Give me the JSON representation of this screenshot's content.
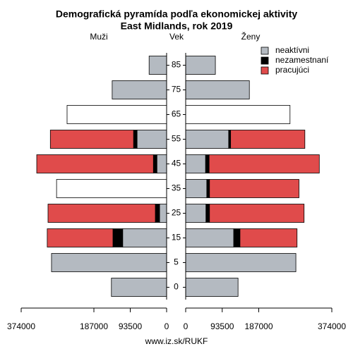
{
  "chart_data": {
    "type": "pyramid",
    "title": "Demografická pyramída podľa ekonomickej aktivity",
    "subtitle": "East Midlands, rok 2019",
    "left_label": "Muži",
    "center_label": "Vek",
    "right_label": "Ženy",
    "source": "www.iz.sk/RUKF",
    "categories": [
      "85",
      "75",
      "65",
      "55",
      "45",
      "35",
      "25",
      "15",
      "5",
      "0"
    ],
    "xlim": [
      0,
      374000
    ],
    "xticks": [
      0,
      93500,
      187000,
      374000
    ],
    "series": [
      {
        "name": "neaktívni",
        "color": "#b4bac1",
        "values_male": [
          45000,
          140000,
          null,
          76000,
          25000,
          null,
          18000,
          113000,
          296000,
          142000
        ],
        "values_female": [
          76000,
          163000,
          null,
          110000,
          51000,
          54000,
          52000,
          123000,
          282000,
          134000
        ]
      },
      {
        "name": "nezamestnaní",
        "color": "#000000",
        "values_male": [
          null,
          null,
          null,
          9000,
          9000,
          null,
          11000,
          25000,
          null,
          null
        ],
        "values_female": [
          null,
          null,
          null,
          5000,
          9000,
          7000,
          9000,
          16000,
          null,
          null
        ]
      },
      {
        "name": "pracujúci",
        "color": "#e04b4b",
        "values_male": [
          null,
          null,
          null,
          214000,
          300000,
          null,
          276000,
          169000,
          null,
          null
        ],
        "values_female": [
          null,
          null,
          null,
          190000,
          282000,
          229000,
          242000,
          146000,
          null,
          null
        ]
      },
      {
        "color": "#ffffff",
        "values_male": [
          null,
          null,
          256000,
          null,
          null,
          283000,
          null,
          null,
          null,
          null
        ],
        "values_female": [
          null,
          null,
          267000,
          null,
          null,
          null,
          null,
          null,
          null,
          null
        ]
      }
    ]
  }
}
